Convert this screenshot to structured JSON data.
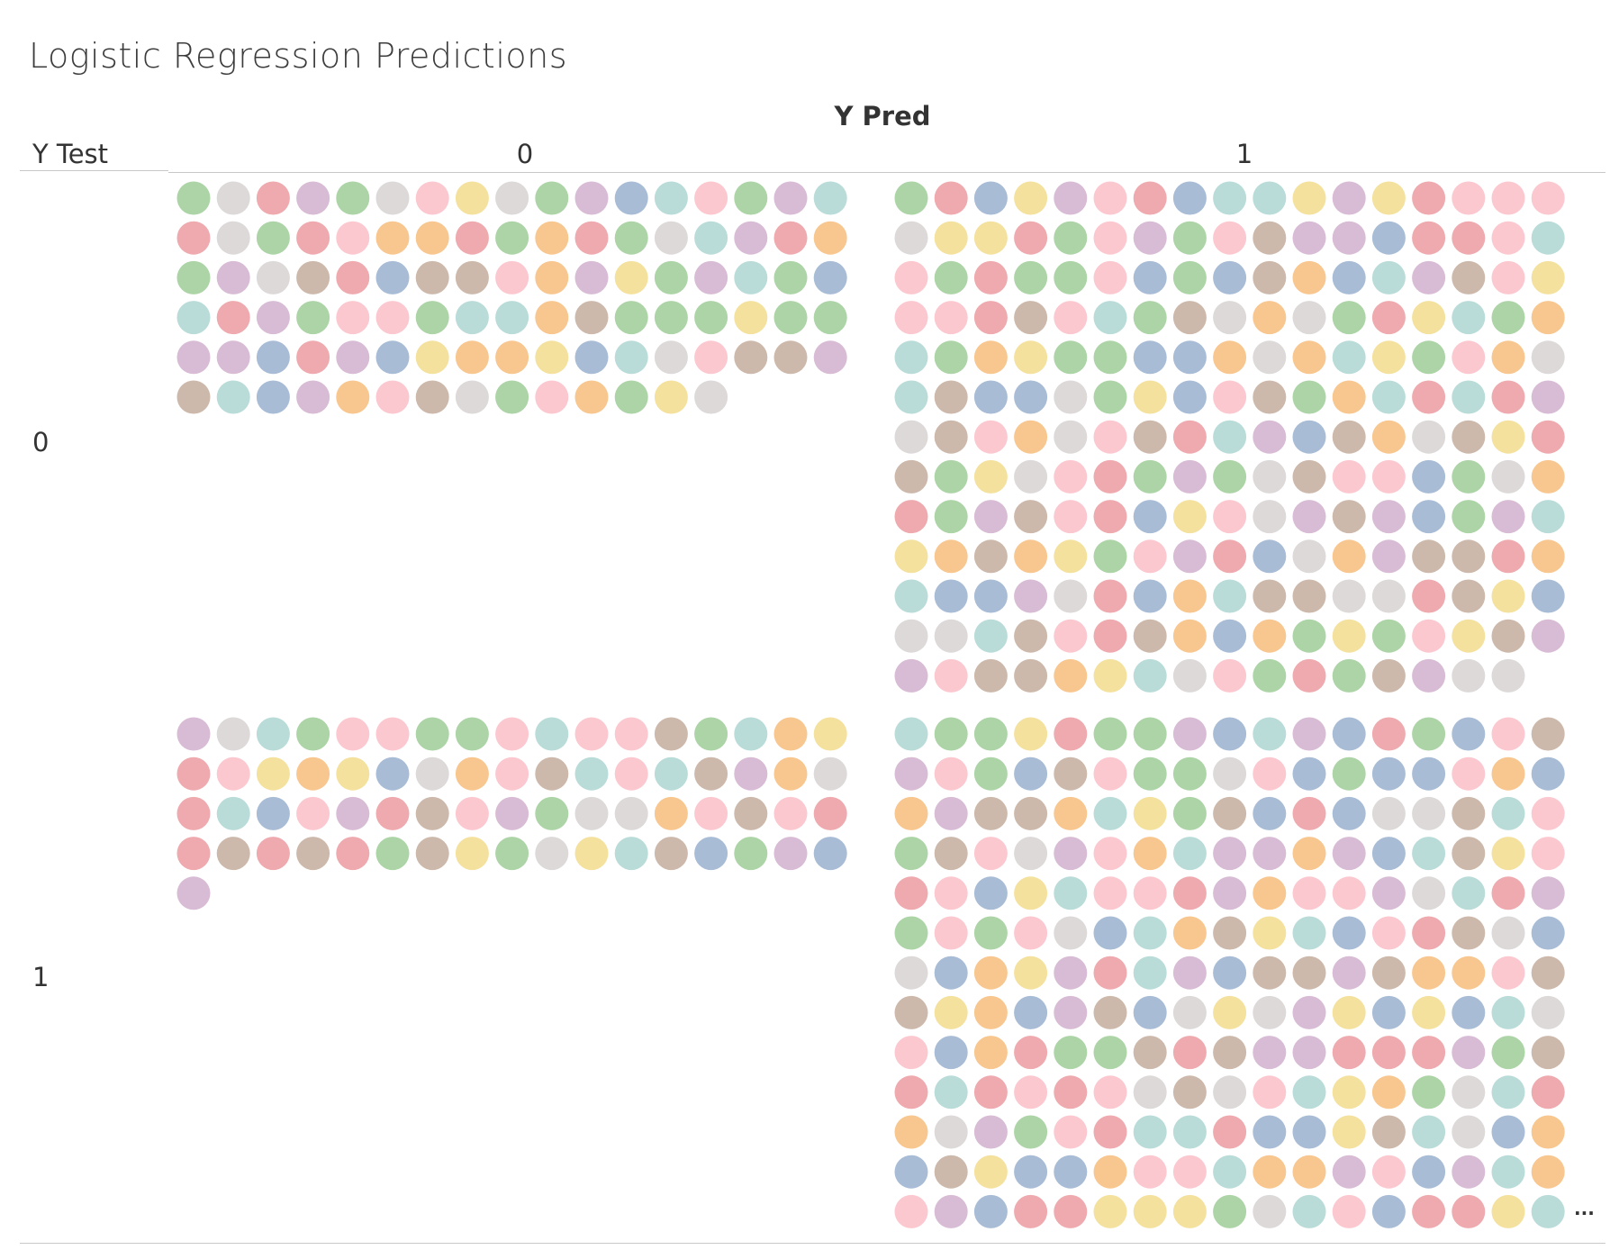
{
  "chart_data": {
    "type": "unit",
    "title": "Logistic Regression Predictions",
    "column_field": "Y Pred",
    "row_field": "Y Test",
    "columns": [
      "0",
      "1"
    ],
    "rows": [
      "0",
      "1"
    ],
    "cells": [
      {
        "y_test": "0",
        "y_pred": "0",
        "visible_marks": 99
      },
      {
        "y_test": "0",
        "y_pred": "1",
        "visible_marks": 220
      },
      {
        "y_test": "1",
        "y_pred": "0",
        "visible_marks": 69
      },
      {
        "y_test": "1",
        "y_pred": "1",
        "visible_marks": 221
      }
    ],
    "truncated_marker": "...",
    "palette": [
      "#fcc8d0",
      "#eeaaae",
      "#d8bbd4",
      "#cdb9ab",
      "#acd4a6",
      "#dcd9d8",
      "#b9dcd9",
      "#a8bcd6",
      "#f4e19e",
      "#f8c68f"
    ]
  }
}
